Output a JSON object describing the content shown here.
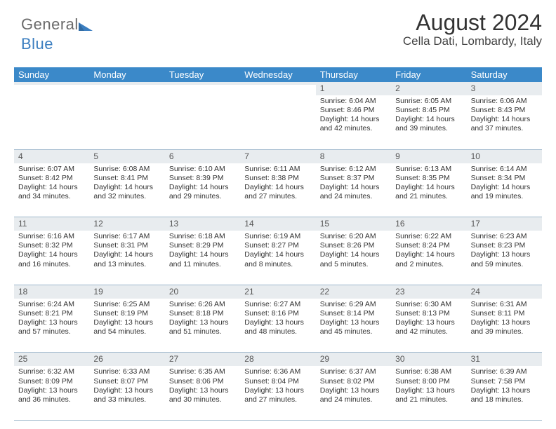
{
  "brand": {
    "word1": "General",
    "word2": "Blue"
  },
  "title": "August 2024",
  "location": "Cella Dati, Lombardy, Italy",
  "colors": {
    "header_bg": "#3b89c9",
    "header_text": "#ffffff",
    "num_strip_bg": "#e8ecef",
    "row_border": "#9fb8cc",
    "brand_gray": "#6a6a6a",
    "brand_blue": "#3b7ec0"
  },
  "dow": [
    "Sunday",
    "Monday",
    "Tuesday",
    "Wednesday",
    "Thursday",
    "Friday",
    "Saturday"
  ],
  "weeks": [
    [
      {
        "n": "",
        "sr": "",
        "ss": "",
        "dl1": "",
        "dl2": ""
      },
      {
        "n": "",
        "sr": "",
        "ss": "",
        "dl1": "",
        "dl2": ""
      },
      {
        "n": "",
        "sr": "",
        "ss": "",
        "dl1": "",
        "dl2": ""
      },
      {
        "n": "",
        "sr": "",
        "ss": "",
        "dl1": "",
        "dl2": ""
      },
      {
        "n": "1",
        "sr": "Sunrise: 6:04 AM",
        "ss": "Sunset: 8:46 PM",
        "dl1": "Daylight: 14 hours",
        "dl2": "and 42 minutes."
      },
      {
        "n": "2",
        "sr": "Sunrise: 6:05 AM",
        "ss": "Sunset: 8:45 PM",
        "dl1": "Daylight: 14 hours",
        "dl2": "and 39 minutes."
      },
      {
        "n": "3",
        "sr": "Sunrise: 6:06 AM",
        "ss": "Sunset: 8:43 PM",
        "dl1": "Daylight: 14 hours",
        "dl2": "and 37 minutes."
      }
    ],
    [
      {
        "n": "4",
        "sr": "Sunrise: 6:07 AM",
        "ss": "Sunset: 8:42 PM",
        "dl1": "Daylight: 14 hours",
        "dl2": "and 34 minutes."
      },
      {
        "n": "5",
        "sr": "Sunrise: 6:08 AM",
        "ss": "Sunset: 8:41 PM",
        "dl1": "Daylight: 14 hours",
        "dl2": "and 32 minutes."
      },
      {
        "n": "6",
        "sr": "Sunrise: 6:10 AM",
        "ss": "Sunset: 8:39 PM",
        "dl1": "Daylight: 14 hours",
        "dl2": "and 29 minutes."
      },
      {
        "n": "7",
        "sr": "Sunrise: 6:11 AM",
        "ss": "Sunset: 8:38 PM",
        "dl1": "Daylight: 14 hours",
        "dl2": "and 27 minutes."
      },
      {
        "n": "8",
        "sr": "Sunrise: 6:12 AM",
        "ss": "Sunset: 8:37 PM",
        "dl1": "Daylight: 14 hours",
        "dl2": "and 24 minutes."
      },
      {
        "n": "9",
        "sr": "Sunrise: 6:13 AM",
        "ss": "Sunset: 8:35 PM",
        "dl1": "Daylight: 14 hours",
        "dl2": "and 21 minutes."
      },
      {
        "n": "10",
        "sr": "Sunrise: 6:14 AM",
        "ss": "Sunset: 8:34 PM",
        "dl1": "Daylight: 14 hours",
        "dl2": "and 19 minutes."
      }
    ],
    [
      {
        "n": "11",
        "sr": "Sunrise: 6:16 AM",
        "ss": "Sunset: 8:32 PM",
        "dl1": "Daylight: 14 hours",
        "dl2": "and 16 minutes."
      },
      {
        "n": "12",
        "sr": "Sunrise: 6:17 AM",
        "ss": "Sunset: 8:31 PM",
        "dl1": "Daylight: 14 hours",
        "dl2": "and 13 minutes."
      },
      {
        "n": "13",
        "sr": "Sunrise: 6:18 AM",
        "ss": "Sunset: 8:29 PM",
        "dl1": "Daylight: 14 hours",
        "dl2": "and 11 minutes."
      },
      {
        "n": "14",
        "sr": "Sunrise: 6:19 AM",
        "ss": "Sunset: 8:27 PM",
        "dl1": "Daylight: 14 hours",
        "dl2": "and 8 minutes."
      },
      {
        "n": "15",
        "sr": "Sunrise: 6:20 AM",
        "ss": "Sunset: 8:26 PM",
        "dl1": "Daylight: 14 hours",
        "dl2": "and 5 minutes."
      },
      {
        "n": "16",
        "sr": "Sunrise: 6:22 AM",
        "ss": "Sunset: 8:24 PM",
        "dl1": "Daylight: 14 hours",
        "dl2": "and 2 minutes."
      },
      {
        "n": "17",
        "sr": "Sunrise: 6:23 AM",
        "ss": "Sunset: 8:23 PM",
        "dl1": "Daylight: 13 hours",
        "dl2": "and 59 minutes."
      }
    ],
    [
      {
        "n": "18",
        "sr": "Sunrise: 6:24 AM",
        "ss": "Sunset: 8:21 PM",
        "dl1": "Daylight: 13 hours",
        "dl2": "and 57 minutes."
      },
      {
        "n": "19",
        "sr": "Sunrise: 6:25 AM",
        "ss": "Sunset: 8:19 PM",
        "dl1": "Daylight: 13 hours",
        "dl2": "and 54 minutes."
      },
      {
        "n": "20",
        "sr": "Sunrise: 6:26 AM",
        "ss": "Sunset: 8:18 PM",
        "dl1": "Daylight: 13 hours",
        "dl2": "and 51 minutes."
      },
      {
        "n": "21",
        "sr": "Sunrise: 6:27 AM",
        "ss": "Sunset: 8:16 PM",
        "dl1": "Daylight: 13 hours",
        "dl2": "and 48 minutes."
      },
      {
        "n": "22",
        "sr": "Sunrise: 6:29 AM",
        "ss": "Sunset: 8:14 PM",
        "dl1": "Daylight: 13 hours",
        "dl2": "and 45 minutes."
      },
      {
        "n": "23",
        "sr": "Sunrise: 6:30 AM",
        "ss": "Sunset: 8:13 PM",
        "dl1": "Daylight: 13 hours",
        "dl2": "and 42 minutes."
      },
      {
        "n": "24",
        "sr": "Sunrise: 6:31 AM",
        "ss": "Sunset: 8:11 PM",
        "dl1": "Daylight: 13 hours",
        "dl2": "and 39 minutes."
      }
    ],
    [
      {
        "n": "25",
        "sr": "Sunrise: 6:32 AM",
        "ss": "Sunset: 8:09 PM",
        "dl1": "Daylight: 13 hours",
        "dl2": "and 36 minutes."
      },
      {
        "n": "26",
        "sr": "Sunrise: 6:33 AM",
        "ss": "Sunset: 8:07 PM",
        "dl1": "Daylight: 13 hours",
        "dl2": "and 33 minutes."
      },
      {
        "n": "27",
        "sr": "Sunrise: 6:35 AM",
        "ss": "Sunset: 8:06 PM",
        "dl1": "Daylight: 13 hours",
        "dl2": "and 30 minutes."
      },
      {
        "n": "28",
        "sr": "Sunrise: 6:36 AM",
        "ss": "Sunset: 8:04 PM",
        "dl1": "Daylight: 13 hours",
        "dl2": "and 27 minutes."
      },
      {
        "n": "29",
        "sr": "Sunrise: 6:37 AM",
        "ss": "Sunset: 8:02 PM",
        "dl1": "Daylight: 13 hours",
        "dl2": "and 24 minutes."
      },
      {
        "n": "30",
        "sr": "Sunrise: 6:38 AM",
        "ss": "Sunset: 8:00 PM",
        "dl1": "Daylight: 13 hours",
        "dl2": "and 21 minutes."
      },
      {
        "n": "31",
        "sr": "Sunrise: 6:39 AM",
        "ss": "Sunset: 7:58 PM",
        "dl1": "Daylight: 13 hours",
        "dl2": "and 18 minutes."
      }
    ]
  ]
}
